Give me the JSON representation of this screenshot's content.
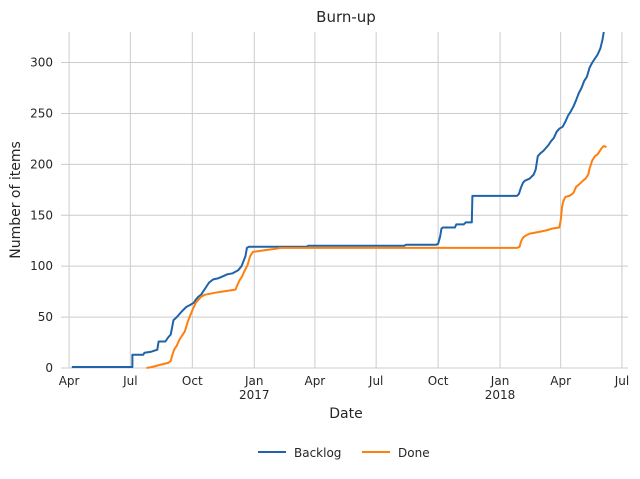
{
  "chart_data": {
    "type": "line",
    "title": "Burn-up",
    "xlabel": "Date",
    "ylabel": "Number of items",
    "x_range": [
      "2016-03-20",
      "2018-07-10"
    ],
    "ylim": [
      0,
      330
    ],
    "grid": true,
    "legend_position": "bottom-center",
    "x_ticks": [
      {
        "date": "2016-04-01",
        "label": "Apr",
        "sublabel": ""
      },
      {
        "date": "2016-07-01",
        "label": "Jul",
        "sublabel": ""
      },
      {
        "date": "2016-10-01",
        "label": "Oct",
        "sublabel": ""
      },
      {
        "date": "2017-01-01",
        "label": "Jan",
        "sublabel": "2017"
      },
      {
        "date": "2017-04-01",
        "label": "Apr",
        "sublabel": ""
      },
      {
        "date": "2017-07-01",
        "label": "Jul",
        "sublabel": ""
      },
      {
        "date": "2017-10-01",
        "label": "Oct",
        "sublabel": ""
      },
      {
        "date": "2018-01-01",
        "label": "Jan",
        "sublabel": "2018"
      },
      {
        "date": "2018-04-01",
        "label": "Apr",
        "sublabel": ""
      },
      {
        "date": "2018-07-01",
        "label": "Jul",
        "sublabel": ""
      }
    ],
    "y_ticks": [
      0,
      50,
      100,
      150,
      200,
      250,
      300
    ],
    "series": [
      {
        "name": "Backlog",
        "color": "#1f63a8",
        "points": [
          [
            "2016-04-05",
            1
          ],
          [
            "2016-07-04",
            1
          ],
          [
            "2016-07-04",
            13
          ],
          [
            "2016-07-20",
            13
          ],
          [
            "2016-07-22",
            15
          ],
          [
            "2016-08-01",
            16
          ],
          [
            "2016-08-10",
            18
          ],
          [
            "2016-08-12",
            26
          ],
          [
            "2016-08-22",
            26
          ],
          [
            "2016-08-26",
            30
          ],
          [
            "2016-08-30",
            33
          ],
          [
            "2016-09-01",
            40
          ],
          [
            "2016-09-03",
            47
          ],
          [
            "2016-09-08",
            50
          ],
          [
            "2016-09-12",
            53
          ],
          [
            "2016-09-16",
            56
          ],
          [
            "2016-09-22",
            60
          ],
          [
            "2016-09-28",
            62
          ],
          [
            "2016-10-03",
            64
          ],
          [
            "2016-10-06",
            67
          ],
          [
            "2016-10-10",
            70
          ],
          [
            "2016-10-14",
            72
          ],
          [
            "2016-10-18",
            76
          ],
          [
            "2016-10-22",
            80
          ],
          [
            "2016-10-26",
            84
          ],
          [
            "2016-11-01",
            87
          ],
          [
            "2016-11-08",
            88
          ],
          [
            "2016-11-15",
            90
          ],
          [
            "2016-11-22",
            92
          ],
          [
            "2016-11-30",
            93
          ],
          [
            "2016-12-08",
            96
          ],
          [
            "2016-12-13",
            100
          ],
          [
            "2016-12-16",
            105
          ],
          [
            "2016-12-19",
            110
          ],
          [
            "2016-12-21",
            118
          ],
          [
            "2016-12-24",
            119
          ],
          [
            "2017-03-20",
            119
          ],
          [
            "2017-03-22",
            120
          ],
          [
            "2017-08-12",
            120
          ],
          [
            "2017-08-14",
            121
          ],
          [
            "2017-09-28",
            121
          ],
          [
            "2017-10-01",
            122
          ],
          [
            "2017-10-04",
            129
          ],
          [
            "2017-10-06",
            137
          ],
          [
            "2017-10-08",
            138
          ],
          [
            "2017-10-26",
            138
          ],
          [
            "2017-10-28",
            141
          ],
          [
            "2017-11-08",
            141
          ],
          [
            "2017-11-11",
            143
          ],
          [
            "2017-11-20",
            143
          ],
          [
            "2017-11-21",
            169
          ],
          [
            "2018-01-26",
            169
          ],
          [
            "2018-01-29",
            171
          ],
          [
            "2018-02-01",
            177
          ],
          [
            "2018-02-04",
            182
          ],
          [
            "2018-02-07",
            184
          ],
          [
            "2018-02-14",
            186
          ],
          [
            "2018-02-20",
            190
          ],
          [
            "2018-02-23",
            195
          ],
          [
            "2018-02-26",
            208
          ],
          [
            "2018-03-02",
            211
          ],
          [
            "2018-03-06",
            213
          ],
          [
            "2018-03-10",
            216
          ],
          [
            "2018-03-14",
            219
          ],
          [
            "2018-03-18",
            223
          ],
          [
            "2018-03-22",
            226
          ],
          [
            "2018-03-26",
            232
          ],
          [
            "2018-03-30",
            235
          ],
          [
            "2018-04-04",
            237
          ],
          [
            "2018-04-08",
            242
          ],
          [
            "2018-04-12",
            248
          ],
          [
            "2018-04-16",
            252
          ],
          [
            "2018-04-20",
            257
          ],
          [
            "2018-04-24",
            263
          ],
          [
            "2018-04-28",
            270
          ],
          [
            "2018-05-02",
            275
          ],
          [
            "2018-05-06",
            282
          ],
          [
            "2018-05-10",
            286
          ],
          [
            "2018-05-14",
            295
          ],
          [
            "2018-05-18",
            300
          ],
          [
            "2018-05-22",
            304
          ],
          [
            "2018-05-26",
            308
          ],
          [
            "2018-05-30",
            314
          ],
          [
            "2018-06-02",
            322
          ],
          [
            "2018-06-04",
            330
          ]
        ]
      },
      {
        "name": "Done",
        "color": "#ff7f0e",
        "points": [
          [
            "2016-07-25",
            0
          ],
          [
            "2016-08-02",
            1
          ],
          [
            "2016-08-08",
            2
          ],
          [
            "2016-08-14",
            3
          ],
          [
            "2016-08-20",
            4
          ],
          [
            "2016-08-26",
            5
          ],
          [
            "2016-08-30",
            7
          ],
          [
            "2016-09-01",
            12
          ],
          [
            "2016-09-04",
            18
          ],
          [
            "2016-09-08",
            22
          ],
          [
            "2016-09-12",
            28
          ],
          [
            "2016-09-16",
            32
          ],
          [
            "2016-09-20",
            36
          ],
          [
            "2016-09-24",
            45
          ],
          [
            "2016-09-28",
            52
          ],
          [
            "2016-10-02",
            58
          ],
          [
            "2016-10-06",
            64
          ],
          [
            "2016-10-10",
            67
          ],
          [
            "2016-10-14",
            70
          ],
          [
            "2016-10-20",
            72
          ],
          [
            "2016-10-28",
            73
          ],
          [
            "2016-11-04",
            74
          ],
          [
            "2016-11-14",
            75
          ],
          [
            "2016-11-24",
            76
          ],
          [
            "2016-12-04",
            77
          ],
          [
            "2016-12-10",
            86
          ],
          [
            "2016-12-14",
            90
          ],
          [
            "2016-12-18",
            96
          ],
          [
            "2016-12-22",
            101
          ],
          [
            "2016-12-26",
            110
          ],
          [
            "2016-12-30",
            114
          ],
          [
            "2017-01-10",
            115
          ],
          [
            "2017-01-20",
            116
          ],
          [
            "2017-02-01",
            117
          ],
          [
            "2017-02-08",
            118
          ],
          [
            "2018-01-26",
            118
          ],
          [
            "2018-01-30",
            119
          ],
          [
            "2018-02-01",
            124
          ],
          [
            "2018-02-04",
            128
          ],
          [
            "2018-02-08",
            130
          ],
          [
            "2018-02-14",
            132
          ],
          [
            "2018-02-22",
            133
          ],
          [
            "2018-03-02",
            134
          ],
          [
            "2018-03-10",
            135
          ],
          [
            "2018-03-20",
            137
          ],
          [
            "2018-03-30",
            138
          ],
          [
            "2018-04-01",
            145
          ],
          [
            "2018-04-03",
            158
          ],
          [
            "2018-04-05",
            164
          ],
          [
            "2018-04-08",
            168
          ],
          [
            "2018-04-14",
            169
          ],
          [
            "2018-04-20",
            172
          ],
          [
            "2018-04-24",
            178
          ],
          [
            "2018-04-28",
            180
          ],
          [
            "2018-05-04",
            184
          ],
          [
            "2018-05-08",
            186
          ],
          [
            "2018-05-12",
            190
          ],
          [
            "2018-05-14",
            196
          ],
          [
            "2018-05-18",
            204
          ],
          [
            "2018-05-22",
            208
          ],
          [
            "2018-05-26",
            210
          ],
          [
            "2018-05-30",
            214
          ],
          [
            "2018-06-01",
            216
          ],
          [
            "2018-06-04",
            218
          ],
          [
            "2018-06-08",
            217
          ]
        ]
      }
    ]
  }
}
